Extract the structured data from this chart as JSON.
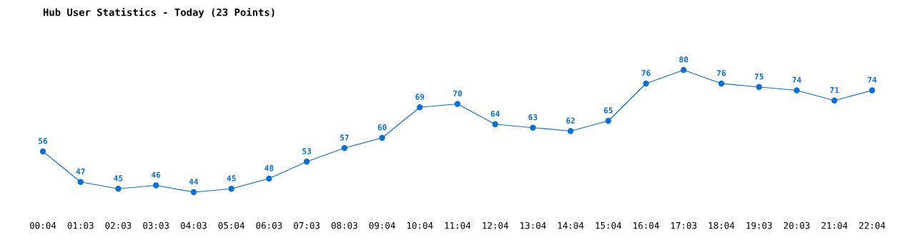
{
  "chart_data": {
    "type": "line",
    "title": "Hub User Statistics - Today (23 Points)",
    "categories": [
      "00:04",
      "01:03",
      "02:03",
      "03:03",
      "04:03",
      "05:04",
      "06:03",
      "07:03",
      "08:03",
      "09:04",
      "10:04",
      "11:04",
      "12:04",
      "13:04",
      "14:04",
      "15:04",
      "16:04",
      "17:03",
      "18:04",
      "19:03",
      "20:03",
      "21:04",
      "22:04"
    ],
    "series": [
      {
        "color": "#0a6fd8",
        "values": [
          56,
          47,
          45,
          46,
          44,
          45,
          48,
          53,
          57,
          60,
          69,
          70,
          64,
          63,
          62,
          65,
          76,
          80,
          76,
          75,
          74,
          71,
          74
        ]
      }
    ],
    "data_labels": true,
    "marker": "circle",
    "line_style": "solid",
    "grid": false,
    "legend": false,
    "tick_labels": "x"
  }
}
